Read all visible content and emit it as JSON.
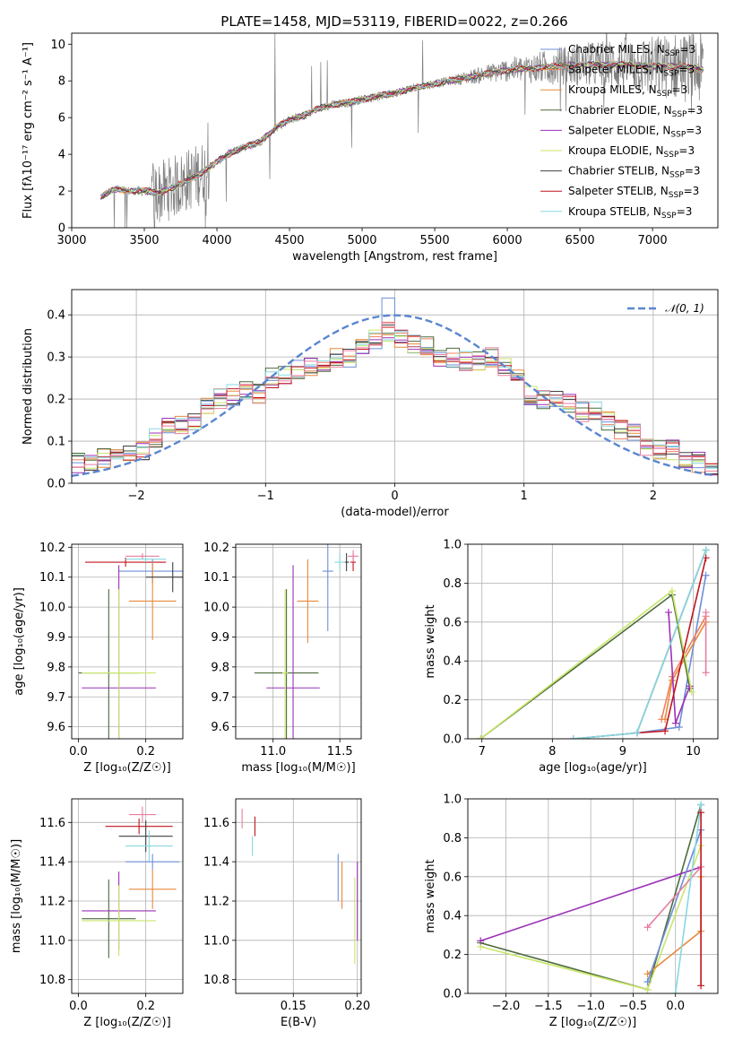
{
  "title": "PLATE=1458, MJD=53119, FIBERID=0022, z=0.266",
  "colors": {
    "chabrier_miles": "#6d8fd8",
    "salpeter_miles": "#f08060",
    "kroupa_miles": "#e88a3c",
    "chabrier_elodie": "#4d6b3a",
    "salpeter_elodie": "#9b30b8",
    "kroupa_elodie": "#c9e66a",
    "chabrier_stelib": "#404040",
    "salpeter_stelib": "#c0141e",
    "kroupa_stelib": "#88d8e0",
    "extra_pink": "#e87ea0",
    "data": "#808080",
    "gauss": "#5a86d0"
  },
  "legend": [
    {
      "label": "Chabrier MILES, N",
      "sub": "SSP",
      "tail": "=3",
      "color": "#6d8fd8"
    },
    {
      "label": "Salpeter MILES, N",
      "sub": "SSP",
      "tail": "=3",
      "color": "#f08060"
    },
    {
      "label": "Kroupa MILES, N",
      "sub": "SSP",
      "tail": "=3",
      "color": "#e88a3c"
    },
    {
      "label": "Chabrier ELODIE, N",
      "sub": "SSP",
      "tail": "=3",
      "color": "#4d6b3a"
    },
    {
      "label": "Salpeter ELODIE, N",
      "sub": "SSP",
      "tail": "=3",
      "color": "#9b30b8"
    },
    {
      "label": "Kroupa ELODIE, N",
      "sub": "SSP",
      "tail": "=3",
      "color": "#c9e66a"
    },
    {
      "label": "Chabrier STELIB, N",
      "sub": "SSP",
      "tail": "=3",
      "color": "#404040"
    },
    {
      "label": "Salpeter STELIB, N",
      "sub": "SSP",
      "tail": "=3",
      "color": "#c0141e"
    },
    {
      "label": "Kroupa STELIB, N",
      "sub": "SSP",
      "tail": "=3",
      "color": "#88d8e0"
    }
  ],
  "chart_data": [
    {
      "type": "line",
      "xlabel": "wavelength [Angstrom, rest frame]",
      "ylabel": "Flux [f",
      "ylabel_full": "Flux [fλ10⁻¹⁷ erg cm⁻² s⁻¹ A⁻¹]",
      "xlim": [
        3000,
        7450
      ],
      "ylim": [
        0,
        10.6
      ],
      "xticks": [
        3000,
        3500,
        4000,
        4500,
        5000,
        5500,
        6000,
        6500,
        7000
      ],
      "yticks": [
        0,
        2,
        4,
        6,
        8,
        10
      ],
      "continuum": {
        "x": [
          3200,
          3300,
          3400,
          3500,
          3600,
          3700,
          3800,
          3900,
          4000,
          4100,
          4200,
          4300,
          4400,
          4500,
          4600,
          4700,
          4800,
          4900,
          5000,
          5200,
          5400,
          5600,
          5800,
          6000,
          6200,
          6400,
          6600,
          6800,
          7000,
          7200,
          7350
        ],
        "y": [
          1.7,
          2.1,
          2.0,
          2.0,
          1.9,
          2.2,
          2.6,
          3.0,
          3.6,
          4.1,
          4.4,
          4.7,
          5.4,
          5.9,
          6.1,
          6.5,
          6.7,
          6.8,
          7.0,
          7.3,
          7.7,
          8.0,
          8.3,
          8.6,
          8.7,
          8.85,
          8.9,
          8.9,
          8.8,
          8.8,
          8.6
        ]
      }
    },
    {
      "type": "line",
      "xlabel": "(data-model)/error",
      "ylabel": "Normed distribution",
      "xlim": [
        -2.5,
        2.5
      ],
      "ylim": [
        0,
        0.46
      ],
      "xticks": [
        -2,
        -1,
        0,
        1,
        2
      ],
      "xticklabels": [
        "−2",
        "−1",
        "0",
        "1",
        "2"
      ],
      "yticks": [
        0.0,
        0.1,
        0.2,
        0.3,
        0.4
      ],
      "legend": "𝒩(0, 1)",
      "bin_centers": [
        -2.45,
        -2.35,
        -2.25,
        -2.15,
        -2.05,
        -1.95,
        -1.85,
        -1.75,
        -1.65,
        -1.55,
        -1.45,
        -1.35,
        -1.25,
        -1.15,
        -1.05,
        -0.95,
        -0.85,
        -0.75,
        -0.65,
        -0.55,
        -0.45,
        -0.35,
        -0.25,
        -0.15,
        -0.05,
        0.05,
        0.15,
        0.25,
        0.35,
        0.45,
        0.55,
        0.65,
        0.75,
        0.85,
        0.95,
        1.05,
        1.15,
        1.25,
        1.35,
        1.45,
        1.55,
        1.65,
        1.75,
        1.85,
        1.95,
        2.05,
        2.15,
        2.25,
        2.35,
        2.45
      ],
      "histogram_mean": [
        0.05,
        0.05,
        0.06,
        0.08,
        0.07,
        0.08,
        0.11,
        0.13,
        0.14,
        0.15,
        0.18,
        0.2,
        0.21,
        0.22,
        0.21,
        0.25,
        0.26,
        0.27,
        0.28,
        0.29,
        0.3,
        0.3,
        0.33,
        0.34,
        0.36,
        0.34,
        0.33,
        0.33,
        0.3,
        0.3,
        0.29,
        0.29,
        0.3,
        0.28,
        0.25,
        0.21,
        0.2,
        0.2,
        0.19,
        0.17,
        0.17,
        0.15,
        0.13,
        0.12,
        0.09,
        0.08,
        0.08,
        0.06,
        0.05,
        0.04
      ]
    },
    {
      "type": "scatter",
      "xlabel": "Z [log₁₀(Z/Z☉)]",
      "ylabel": "age  [log₁₀(age/yr)]",
      "xlim": [
        -0.02,
        0.31
      ],
      "ylim": [
        9.56,
        10.21
      ],
      "xticks": [
        0.0,
        0.2
      ],
      "yticks": [
        9.6,
        9.7,
        9.8,
        9.9,
        10.0,
        10.1,
        10.2
      ],
      "points": [
        {
          "x": 0.19,
          "y": 10.17,
          "xerr": 0.05,
          "yerr": 0.01,
          "series": "extra_pink"
        },
        {
          "x": 0.14,
          "y": 10.15,
          "xerr": 0.12,
          "yerr": 0.015,
          "series": "salpeter_stelib"
        },
        {
          "x": 0.22,
          "y": 10.12,
          "xerr": 0.1,
          "yerr": 0.04,
          "series": "chabrier_miles"
        },
        {
          "x": 0.22,
          "y": 10.02,
          "xerr": 0.07,
          "yerr": 0.13,
          "series": "kroupa_miles"
        },
        {
          "x": 0.09,
          "y": 9.78,
          "xerr": 0.09,
          "yerr": 0.28,
          "series": "chabrier_elodie"
        },
        {
          "x": 0.12,
          "y": 9.73,
          "xerr": 0.11,
          "yerr": 0.41,
          "series": "salpeter_elodie"
        },
        {
          "x": 0.12,
          "y": 9.78,
          "xerr": 0.11,
          "yerr": 0.28,
          "series": "kroupa_elodie"
        },
        {
          "x": 0.2,
          "y": 10.16,
          "xerr": 0.06,
          "yerr": 0.01,
          "series": "kroupa_stelib"
        },
        {
          "x": 0.28,
          "y": 10.1,
          "xerr": 0.08,
          "yerr": 0.05,
          "series": "chabrier_stelib"
        }
      ]
    },
    {
      "type": "scatter",
      "xlabel": "mass [log₁₀(M/M☉)]",
      "ylabel": "",
      "xlim": [
        10.72,
        11.66
      ],
      "ylim": [
        9.56,
        10.21
      ],
      "xticks": [
        11.0,
        11.5
      ],
      "yticks": [
        9.6,
        9.7,
        9.8,
        9.9,
        10.0,
        10.1,
        10.2
      ],
      "points": [
        {
          "x": 11.6,
          "y": 10.15,
          "xerr": 0.02,
          "yerr": 0.03,
          "series": "salpeter_stelib"
        },
        {
          "x": 11.55,
          "y": 10.15,
          "xerr": 0.02,
          "yerr": 0.03,
          "series": "chabrier_stelib"
        },
        {
          "x": 11.5,
          "y": 10.15,
          "xerr": 0.04,
          "yerr": 0.03,
          "series": "kroupa_stelib"
        },
        {
          "x": 11.41,
          "y": 10.12,
          "xerr": 0.04,
          "yerr": 0.2,
          "series": "chabrier_miles"
        },
        {
          "x": 11.26,
          "y": 10.02,
          "xerr": 0.08,
          "yerr": 0.14,
          "series": "kroupa_miles"
        },
        {
          "x": 11.1,
          "y": 9.78,
          "xerr": 0.24,
          "yerr": 0.28,
          "series": "chabrier_elodie"
        },
        {
          "x": 11.15,
          "y": 9.73,
          "xerr": 0.2,
          "yerr": 0.41,
          "series": "salpeter_elodie"
        },
        {
          "x": 11.09,
          "y": 9.78,
          "xerr": 0.02,
          "yerr": 0.28,
          "series": "kroupa_elodie"
        },
        {
          "x": 11.6,
          "y": 10.17,
          "xerr": 0.04,
          "yerr": 0.02,
          "series": "extra_pink"
        }
      ]
    },
    {
      "type": "line",
      "xlabel": "age  [log₁₀(age/yr)]",
      "ylabel": "mass weight",
      "xlim": [
        6.8,
        10.35
      ],
      "ylim": [
        0,
        1.0
      ],
      "xticks": [
        7,
        8,
        9,
        10
      ],
      "yticks": [
        0.0,
        0.2,
        0.4,
        0.6,
        0.8,
        1.0
      ],
      "series": [
        {
          "name": "Chabrier MILES, NSSP=3",
          "x": [
            9.2,
            9.8,
            10.18
          ],
          "y": [
            0.03,
            0.06,
            0.84
          ],
          "series": "chabrier_miles"
        },
        {
          "name": "Salpeter MILES, NSSP=3",
          "x": [
            9.55,
            9.7,
            10.18
          ],
          "y": [
            0.1,
            0.32,
            0.63
          ],
          "series": "salpeter_miles"
        },
        {
          "name": "Kroupa MILES, NSSP=3",
          "x": [
            9.6,
            9.7,
            10.18
          ],
          "y": [
            0.1,
            0.3,
            0.6
          ],
          "series": "kroupa_miles"
        },
        {
          "name": "Chabrier ELODIE, NSSP=3",
          "x": [
            6.98,
            9.7,
            9.95
          ],
          "y": [
            0.0,
            0.74,
            0.26
          ],
          "series": "chabrier_elodie"
        },
        {
          "name": "Salpeter ELODIE, NSSP=3",
          "x": [
            9.65,
            9.75,
            9.95
          ],
          "y": [
            0.65,
            0.08,
            0.27
          ],
          "series": "salpeter_elodie"
        },
        {
          "name": "Kroupa ELODIE, NSSP=3",
          "x": [
            6.98,
            9.7,
            9.98
          ],
          "y": [
            0.0,
            0.76,
            0.24
          ],
          "series": "kroupa_elodie"
        },
        {
          "name": "Chabrier STELIB, NSSP=3",
          "x": [
            8.3,
            9.2,
            10.18
          ],
          "y": [
            0.0,
            0.03,
            0.97
          ],
          "series": "chabrier_stelib"
        },
        {
          "name": "Salpeter STELIB, NSSP=3",
          "x": [
            9.2,
            9.6,
            10.18
          ],
          "y": [
            0.03,
            0.04,
            0.93
          ],
          "series": "salpeter_stelib"
        },
        {
          "name": "Kroupa STELIB, NSSP=3",
          "x": [
            8.3,
            9.2,
            10.18
          ],
          "y": [
            0.0,
            0.03,
            0.97
          ],
          "series": "kroupa_stelib"
        },
        {
          "name": "",
          "x": [
            10.18,
            10.18
          ],
          "y": [
            0.34,
            0.65
          ],
          "series": "extra_pink"
        }
      ]
    },
    {
      "type": "scatter",
      "xlabel": "Z [log₁₀(Z/Z☉)]",
      "ylabel": "mass [log₁₀(M/M☉)]",
      "xlim": [
        -0.02,
        0.31
      ],
      "ylim": [
        10.73,
        11.72
      ],
      "xticks": [
        0.0,
        0.2
      ],
      "yticks": [
        10.8,
        11.0,
        11.2,
        11.4,
        11.6
      ],
      "points": [
        {
          "x": 0.19,
          "y": 11.64,
          "xerr": 0.04,
          "yerr": 0.04,
          "series": "extra_pink"
        },
        {
          "x": 0.18,
          "y": 11.58,
          "xerr": 0.1,
          "yerr": 0.04,
          "series": "salpeter_stelib"
        },
        {
          "x": 0.2,
          "y": 11.53,
          "xerr": 0.08,
          "yerr": 0.08,
          "series": "chabrier_stelib"
        },
        {
          "x": 0.21,
          "y": 11.48,
          "xerr": 0.07,
          "yerr": 0.08,
          "series": "kroupa_stelib"
        },
        {
          "x": 0.22,
          "y": 11.4,
          "xerr": 0.08,
          "yerr": 0.04,
          "series": "chabrier_miles"
        },
        {
          "x": 0.22,
          "y": 11.26,
          "xerr": 0.07,
          "yerr": 0.1,
          "series": "kroupa_miles"
        },
        {
          "x": 0.09,
          "y": 11.11,
          "xerr": 0.08,
          "yerr": 0.2,
          "series": "chabrier_elodie"
        },
        {
          "x": 0.12,
          "y": 11.15,
          "xerr": 0.11,
          "yerr": 0.2,
          "series": "salpeter_elodie"
        },
        {
          "x": 0.12,
          "y": 11.1,
          "xerr": 0.11,
          "yerr": 0.18,
          "series": "kroupa_elodie"
        }
      ]
    },
    {
      "type": "scatter",
      "xlabel": "E(B-V)",
      "ylabel": "",
      "xlim": [
        0.105,
        0.203
      ],
      "ylim": [
        10.73,
        11.72
      ],
      "xticks": [
        0.15,
        0.2
      ],
      "yticks": [
        10.8,
        11.0,
        11.2,
        11.4,
        11.6
      ],
      "points": [
        {
          "x": 0.11,
          "y": 11.62,
          "yerr": 0.05,
          "series": "extra_pink"
        },
        {
          "x": 0.12,
          "y": 11.58,
          "yerr": 0.05,
          "series": "salpeter_stelib"
        },
        {
          "x": 0.118,
          "y": 11.48,
          "yerr": 0.05,
          "series": "kroupa_stelib"
        },
        {
          "x": 0.185,
          "y": 11.32,
          "yerr": 0.12,
          "series": "chabrier_miles"
        },
        {
          "x": 0.188,
          "y": 11.28,
          "yerr": 0.12,
          "series": "kroupa_miles"
        },
        {
          "x": 0.198,
          "y": 11.1,
          "yerr": 0.22,
          "series": "kroupa_elodie"
        },
        {
          "x": 0.2,
          "y": 11.2,
          "yerr": 0.2,
          "series": "salpeter_elodie"
        }
      ]
    },
    {
      "type": "line",
      "xlabel": "Z [log₁₀(Z/Z☉)]",
      "ylabel": "mass weight",
      "xlim": [
        -2.45,
        0.5
      ],
      "ylim": [
        0,
        1.0
      ],
      "xticks": [
        -2.0,
        -1.5,
        -1.0,
        -0.5,
        0.0
      ],
      "xticklabels": [
        "−2.0",
        "−1.5",
        "−1.0",
        "−0.5",
        "0.0"
      ],
      "yticks": [
        0.0,
        0.2,
        0.4,
        0.6,
        0.8,
        1.0
      ],
      "series": [
        {
          "x": [
            -2.3,
            -0.33,
            0.3
          ],
          "y": [
            0.26,
            0.02,
            0.97
          ],
          "series": "chabrier_elodie"
        },
        {
          "x": [
            -2.3,
            -0.33,
            0.3
          ],
          "y": [
            0.24,
            0.02,
            0.76
          ],
          "series": "kroupa_elodie"
        },
        {
          "x": [
            -2.3,
            0.3
          ],
          "y": [
            0.27,
            0.65
          ],
          "series": "salpeter_elodie"
        },
        {
          "x": [
            -0.33,
            0.3,
            0.3
          ],
          "y": [
            0.1,
            0.32,
            0.6
          ],
          "series": "kroupa_miles"
        },
        {
          "x": [
            -0.33,
            0.3
          ],
          "y": [
            0.06,
            0.84
          ],
          "series": "chabrier_miles"
        },
        {
          "x": [
            -0.33,
            0.3
          ],
          "y": [
            0.34,
            0.65
          ],
          "series": "extra_pink"
        },
        {
          "x": [
            0.0,
            0.3
          ],
          "y": [
            0.0,
            0.97
          ],
          "series": "kroupa_stelib"
        },
        {
          "x": [
            0.3,
            0.3
          ],
          "y": [
            0.04,
            0.93
          ],
          "series": "salpeter_stelib"
        }
      ]
    }
  ]
}
